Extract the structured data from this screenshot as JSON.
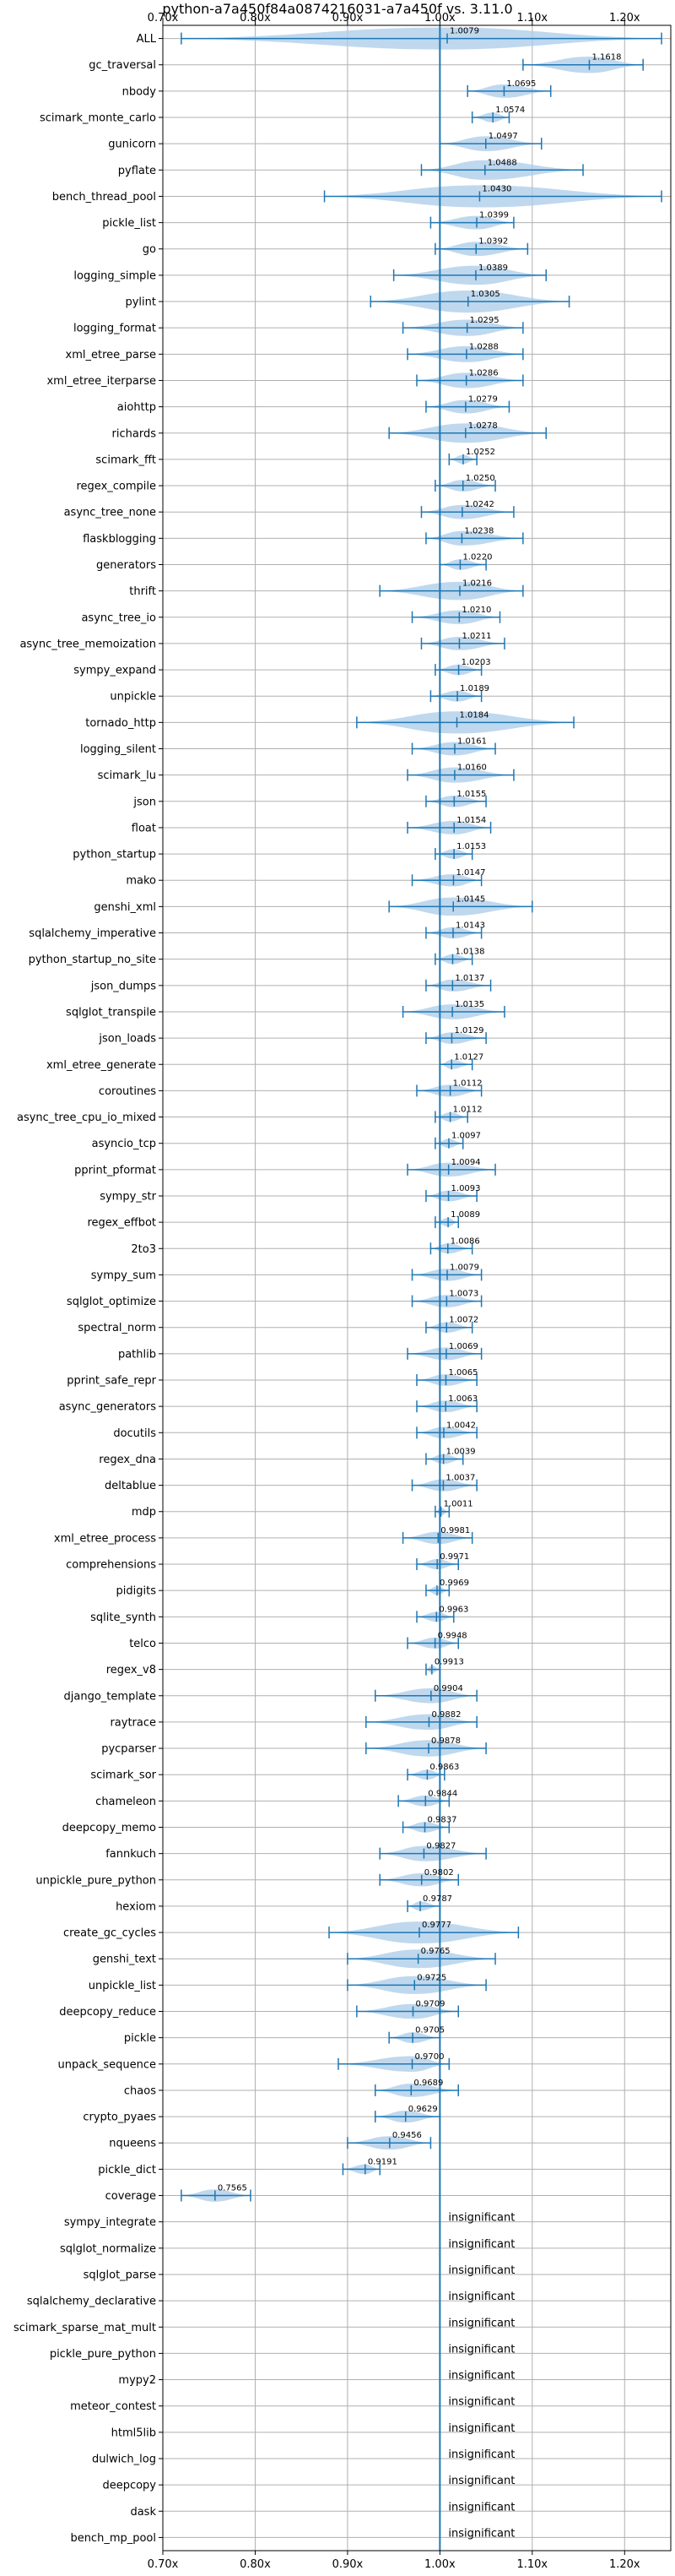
{
  "chart_data": {
    "type": "violin",
    "title": "python-a7a450f84a0874216031-a7a450f vs. 3.11.0",
    "xlim": [
      0.7,
      1.25
    ],
    "x_ticks": [
      0.7,
      0.8,
      0.9,
      1.0,
      1.1,
      1.2
    ],
    "x_tick_labels": [
      "0.70x",
      "0.80x",
      "0.90x",
      "1.00x",
      "1.10x",
      "1.20x"
    ],
    "reference_line": 1.0,
    "grid": true,
    "colors": {
      "violin": "#aacbe8",
      "line": "#1f77b4",
      "grid": "#b0b0b0"
    },
    "insignificant_label": "insignificant",
    "benchmarks": [
      {
        "name": "ALL",
        "value": 1.0079,
        "min": 0.72,
        "max": 1.24
      },
      {
        "name": "gc_traversal",
        "value": 1.1618,
        "min": 1.09,
        "max": 1.22
      },
      {
        "name": "nbody",
        "value": 1.0695,
        "min": 1.03,
        "max": 1.12
      },
      {
        "name": "scimark_monte_carlo",
        "value": 1.0574,
        "min": 1.035,
        "max": 1.075
      },
      {
        "name": "gunicorn",
        "value": 1.0497,
        "min": 1.0,
        "max": 1.11
      },
      {
        "name": "pyflate",
        "value": 1.0488,
        "min": 0.98,
        "max": 1.155
      },
      {
        "name": "bench_thread_pool",
        "value": 1.043,
        "min": 0.875,
        "max": 1.24
      },
      {
        "name": "pickle_list",
        "value": 1.0399,
        "min": 0.99,
        "max": 1.08
      },
      {
        "name": "go",
        "value": 1.0392,
        "min": 0.995,
        "max": 1.095
      },
      {
        "name": "logging_simple",
        "value": 1.0389,
        "min": 0.95,
        "max": 1.115
      },
      {
        "name": "pylint",
        "value": 1.0305,
        "min": 0.925,
        "max": 1.14
      },
      {
        "name": "logging_format",
        "value": 1.0295,
        "min": 0.96,
        "max": 1.09
      },
      {
        "name": "xml_etree_parse",
        "value": 1.0288,
        "min": 0.965,
        "max": 1.09
      },
      {
        "name": "xml_etree_iterparse",
        "value": 1.0286,
        "min": 0.975,
        "max": 1.09
      },
      {
        "name": "aiohttp",
        "value": 1.0279,
        "min": 0.985,
        "max": 1.075
      },
      {
        "name": "richards",
        "value": 1.0278,
        "min": 0.945,
        "max": 1.115
      },
      {
        "name": "scimark_fft",
        "value": 1.0252,
        "min": 1.01,
        "max": 1.04
      },
      {
        "name": "regex_compile",
        "value": 1.025,
        "min": 0.995,
        "max": 1.06
      },
      {
        "name": "async_tree_none",
        "value": 1.0242,
        "min": 0.98,
        "max": 1.08
      },
      {
        "name": "flaskblogging",
        "value": 1.0238,
        "min": 0.985,
        "max": 1.09
      },
      {
        "name": "generators",
        "value": 1.022,
        "min": 1.0,
        "max": 1.05
      },
      {
        "name": "thrift",
        "value": 1.0216,
        "min": 0.935,
        "max": 1.09
      },
      {
        "name": "async_tree_io",
        "value": 1.021,
        "min": 0.97,
        "max": 1.065
      },
      {
        "name": "async_tree_memoization",
        "value": 1.0211,
        "min": 0.98,
        "max": 1.07
      },
      {
        "name": "sympy_expand",
        "value": 1.0203,
        "min": 0.995,
        "max": 1.045
      },
      {
        "name": "unpickle",
        "value": 1.0189,
        "min": 0.99,
        "max": 1.045
      },
      {
        "name": "tornado_http",
        "value": 1.0184,
        "min": 0.91,
        "max": 1.145
      },
      {
        "name": "logging_silent",
        "value": 1.0161,
        "min": 0.97,
        "max": 1.06
      },
      {
        "name": "scimark_lu",
        "value": 1.016,
        "min": 0.965,
        "max": 1.08
      },
      {
        "name": "json",
        "value": 1.0155,
        "min": 0.985,
        "max": 1.05
      },
      {
        "name": "float",
        "value": 1.0154,
        "min": 0.965,
        "max": 1.055
      },
      {
        "name": "python_startup",
        "value": 1.0153,
        "min": 0.995,
        "max": 1.035
      },
      {
        "name": "mako",
        "value": 1.0147,
        "min": 0.97,
        "max": 1.045
      },
      {
        "name": "genshi_xml",
        "value": 1.0145,
        "min": 0.945,
        "max": 1.1
      },
      {
        "name": "sqlalchemy_imperative",
        "value": 1.0143,
        "min": 0.985,
        "max": 1.045
      },
      {
        "name": "python_startup_no_site",
        "value": 1.0138,
        "min": 0.995,
        "max": 1.035
      },
      {
        "name": "json_dumps",
        "value": 1.0137,
        "min": 0.985,
        "max": 1.055
      },
      {
        "name": "sqlglot_transpile",
        "value": 1.0135,
        "min": 0.96,
        "max": 1.07
      },
      {
        "name": "json_loads",
        "value": 1.0129,
        "min": 0.985,
        "max": 1.05
      },
      {
        "name": "xml_etree_generate",
        "value": 1.0127,
        "min": 1.0,
        "max": 1.035
      },
      {
        "name": "coroutines",
        "value": 1.0112,
        "min": 0.975,
        "max": 1.045
      },
      {
        "name": "async_tree_cpu_io_mixed",
        "value": 1.0112,
        "min": 0.995,
        "max": 1.03
      },
      {
        "name": "asyncio_tcp",
        "value": 1.0097,
        "min": 0.995,
        "max": 1.025
      },
      {
        "name": "pprint_pformat",
        "value": 1.0094,
        "min": 0.965,
        "max": 1.06
      },
      {
        "name": "sympy_str",
        "value": 1.0093,
        "min": 0.985,
        "max": 1.04
      },
      {
        "name": "regex_effbot",
        "value": 1.0089,
        "min": 0.995,
        "max": 1.02
      },
      {
        "name": "2to3",
        "value": 1.0086,
        "min": 0.99,
        "max": 1.035
      },
      {
        "name": "sympy_sum",
        "value": 1.0079,
        "min": 0.97,
        "max": 1.045
      },
      {
        "name": "sqlglot_optimize",
        "value": 1.0073,
        "min": 0.97,
        "max": 1.045
      },
      {
        "name": "spectral_norm",
        "value": 1.0072,
        "min": 0.985,
        "max": 1.035
      },
      {
        "name": "pathlib",
        "value": 1.0069,
        "min": 0.965,
        "max": 1.045
      },
      {
        "name": "pprint_safe_repr",
        "value": 1.0065,
        "min": 0.975,
        "max": 1.04
      },
      {
        "name": "async_generators",
        "value": 1.0063,
        "min": 0.975,
        "max": 1.04
      },
      {
        "name": "docutils",
        "value": 1.0042,
        "min": 0.975,
        "max": 1.04
      },
      {
        "name": "regex_dna",
        "value": 1.0039,
        "min": 0.985,
        "max": 1.025
      },
      {
        "name": "deltablue",
        "value": 1.0037,
        "min": 0.97,
        "max": 1.04
      },
      {
        "name": "mdp",
        "value": 1.0011,
        "min": 0.995,
        "max": 1.01
      },
      {
        "name": "xml_etree_process",
        "value": 0.9981,
        "min": 0.96,
        "max": 1.035
      },
      {
        "name": "comprehensions",
        "value": 0.9971,
        "min": 0.975,
        "max": 1.02
      },
      {
        "name": "pidigits",
        "value": 0.9969,
        "min": 0.985,
        "max": 1.01
      },
      {
        "name": "sqlite_synth",
        "value": 0.9963,
        "min": 0.975,
        "max": 1.015
      },
      {
        "name": "telco",
        "value": 0.9948,
        "min": 0.965,
        "max": 1.02
      },
      {
        "name": "regex_v8",
        "value": 0.9913,
        "min": 0.985,
        "max": 1.0
      },
      {
        "name": "django_template",
        "value": 0.9904,
        "min": 0.93,
        "max": 1.04
      },
      {
        "name": "raytrace",
        "value": 0.9882,
        "min": 0.92,
        "max": 1.04
      },
      {
        "name": "pycparser",
        "value": 0.9878,
        "min": 0.92,
        "max": 1.05
      },
      {
        "name": "scimark_sor",
        "value": 0.9863,
        "min": 0.965,
        "max": 1.005
      },
      {
        "name": "chameleon",
        "value": 0.9844,
        "min": 0.955,
        "max": 1.01
      },
      {
        "name": "deepcopy_memo",
        "value": 0.9837,
        "min": 0.96,
        "max": 1.01
      },
      {
        "name": "fannkuch",
        "value": 0.9827,
        "min": 0.935,
        "max": 1.05
      },
      {
        "name": "unpickle_pure_python",
        "value": 0.9802,
        "min": 0.935,
        "max": 1.02
      },
      {
        "name": "hexiom",
        "value": 0.9787,
        "min": 0.965,
        "max": 1.0
      },
      {
        "name": "create_gc_cycles",
        "value": 0.9777,
        "min": 0.88,
        "max": 1.085
      },
      {
        "name": "genshi_text",
        "value": 0.9765,
        "min": 0.9,
        "max": 1.06
      },
      {
        "name": "unpickle_list",
        "value": 0.9725,
        "min": 0.9,
        "max": 1.05
      },
      {
        "name": "deepcopy_reduce",
        "value": 0.9709,
        "min": 0.91,
        "max": 1.02
      },
      {
        "name": "pickle",
        "value": 0.9705,
        "min": 0.945,
        "max": 1.0
      },
      {
        "name": "unpack_sequence",
        "value": 0.97,
        "min": 0.89,
        "max": 1.01
      },
      {
        "name": "chaos",
        "value": 0.9689,
        "min": 0.93,
        "max": 1.02
      },
      {
        "name": "crypto_pyaes",
        "value": 0.9629,
        "min": 0.93,
        "max": 1.0
      },
      {
        "name": "nqueens",
        "value": 0.9456,
        "min": 0.9,
        "max": 0.99
      },
      {
        "name": "pickle_dict",
        "value": 0.9191,
        "min": 0.895,
        "max": 0.935
      },
      {
        "name": "coverage",
        "value": 0.7565,
        "min": 0.72,
        "max": 0.795
      },
      {
        "name": "sympy_integrate",
        "insignificant": true
      },
      {
        "name": "sqlglot_normalize",
        "insignificant": true
      },
      {
        "name": "sqlglot_parse",
        "insignificant": true
      },
      {
        "name": "sqlalchemy_declarative",
        "insignificant": true
      },
      {
        "name": "scimark_sparse_mat_mult",
        "insignificant": true
      },
      {
        "name": "pickle_pure_python",
        "insignificant": true
      },
      {
        "name": "mypy2",
        "insignificant": true
      },
      {
        "name": "meteor_contest",
        "insignificant": true
      },
      {
        "name": "html5lib",
        "insignificant": true
      },
      {
        "name": "dulwich_log",
        "insignificant": true
      },
      {
        "name": "deepcopy",
        "insignificant": true
      },
      {
        "name": "dask",
        "insignificant": true
      },
      {
        "name": "bench_mp_pool",
        "insignificant": true
      }
    ]
  }
}
